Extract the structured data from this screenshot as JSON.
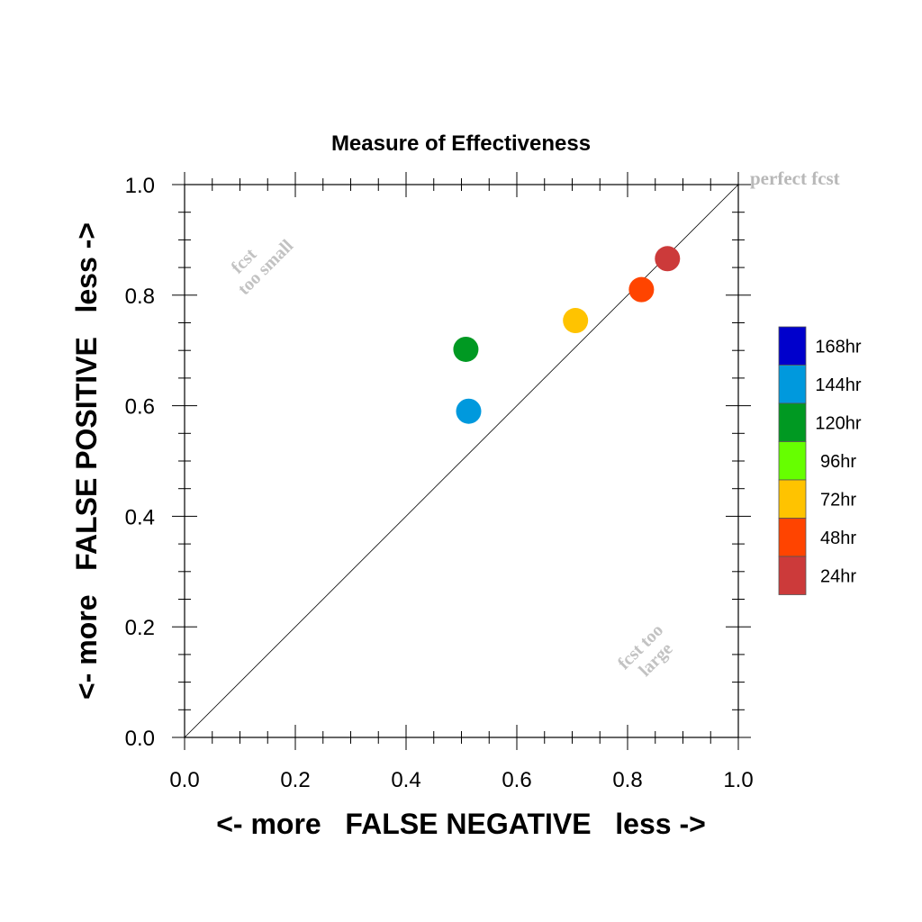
{
  "chart_data": {
    "type": "scatter",
    "title": "Measure of Effectiveness",
    "xlabel": "<- more   FALSE NEGATIVE   less ->",
    "ylabel": "<- more   FALSE POSITIVE   less ->",
    "xlim": [
      0.0,
      1.0
    ],
    "ylim": [
      0.0,
      1.0
    ],
    "xticks": [
      "0.0",
      "0.2",
      "0.4",
      "0.6",
      "0.8",
      "1.0"
    ],
    "yticks": [
      "0.0",
      "0.2",
      "0.4",
      "0.6",
      "0.8",
      "1.0"
    ],
    "grid": false,
    "reference_line": "diagonal",
    "annotations": {
      "perfect": "perfect fcst",
      "too_small_1": "fcst",
      "too_small_2": "too small",
      "too_large_1": "fcst too",
      "too_large_2": "large"
    },
    "points": [
      {
        "label": "144hr",
        "x": 0.513,
        "y": 0.59,
        "color": "#0099dd"
      },
      {
        "label": "120hr",
        "x": 0.508,
        "y": 0.702,
        "color": "#009922"
      },
      {
        "label": "72hr",
        "x": 0.706,
        "y": 0.754,
        "color": "#ffc300"
      },
      {
        "label": "48hr",
        "x": 0.825,
        "y": 0.81,
        "color": "#ff4400"
      },
      {
        "label": "24hr",
        "x": 0.872,
        "y": 0.866,
        "color": "#cc3a3a"
      }
    ],
    "legend": {
      "placement": "right",
      "entries": [
        {
          "label": "168hr",
          "color": "#0000cc"
        },
        {
          "label": "144hr",
          "color": "#0099dd"
        },
        {
          "label": "120hr",
          "color": "#009922"
        },
        {
          "label": "96hr",
          "color": "#66ff00"
        },
        {
          "label": "72hr",
          "color": "#ffc300"
        },
        {
          "label": "48hr",
          "color": "#ff4400"
        },
        {
          "label": "24hr",
          "color": "#cc3a3a"
        }
      ]
    }
  }
}
